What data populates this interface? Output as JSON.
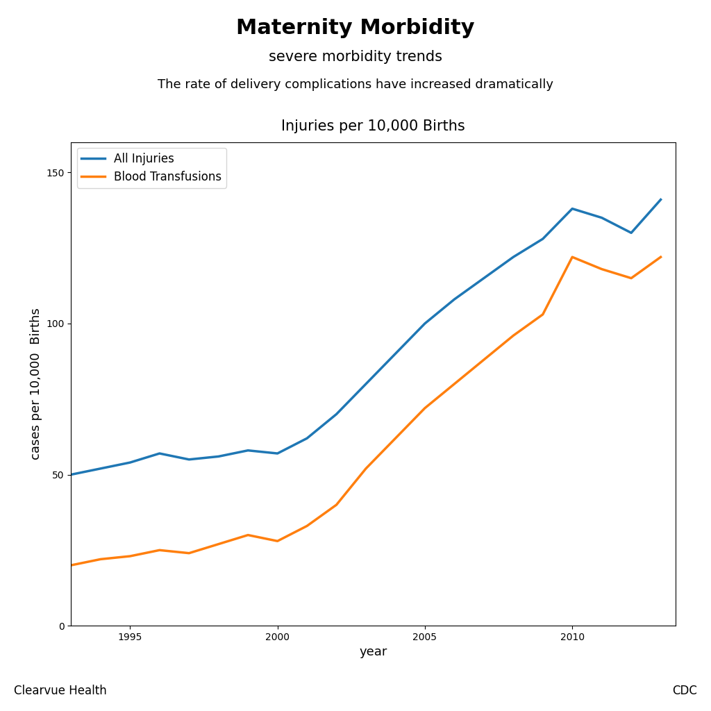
{
  "chart_data": {
    "type": "line",
    "title": "Maternity Morbidity",
    "subtitle": "severe morbidity trends",
    "annotations": [
      "The rate of delivery complications have increased dramatically",
      "Injuries per 10,000 Births",
      "Clearvue Health",
      "CDC"
    ],
    "x_label": "year",
    "y_label": "cases per 10,000  Births",
    "x": [
      1993,
      1994,
      1995,
      1996,
      1997,
      1998,
      1999,
      2000,
      2001,
      2002,
      2003,
      2004,
      2005,
      2006,
      2007,
      2008,
      2009,
      2010,
      2011,
      2012,
      2013
    ],
    "series": [
      {
        "name": "All Injuries",
        "values": [
          50,
          52,
          54,
          57,
          55,
          56,
          58,
          57,
          62,
          70,
          80,
          90,
          100,
          108,
          115,
          122,
          128,
          138,
          135,
          130,
          141
        ]
      },
      {
        "name": "Blood Transfusions",
        "values": [
          20,
          22,
          23,
          25,
          24,
          27,
          30,
          28,
          33,
          40,
          52,
          62,
          72,
          80,
          88,
          96,
          103,
          122,
          118,
          115,
          122
        ]
      }
    ],
    "xlim": [
      1993,
      2013.5
    ],
    "xticks": [
      1995,
      2000,
      2005,
      2010
    ],
    "ylim": [
      0,
      160
    ],
    "yticks": [
      0,
      50,
      100,
      150
    ],
    "grid": false,
    "legend": "upper left"
  }
}
